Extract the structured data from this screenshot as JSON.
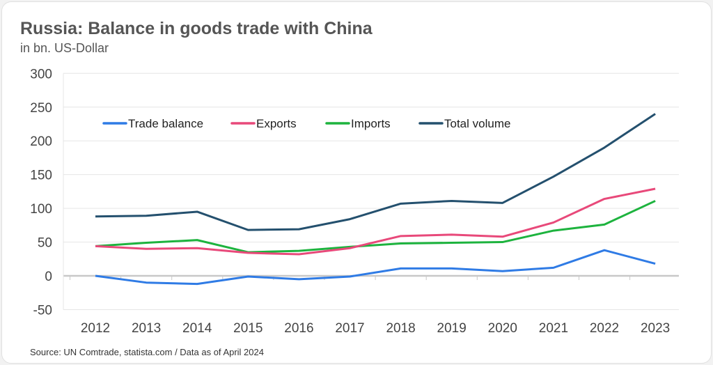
{
  "chart_data": {
    "type": "line",
    "title": "Russia: Balance in goods trade with China",
    "subtitle": "in bn. US-Dollar",
    "xlabel": "",
    "ylabel": "",
    "x": [
      "2012",
      "2013",
      "2014",
      "2015",
      "2016",
      "2017",
      "2018",
      "2019",
      "2020",
      "2021",
      "2022",
      "2023"
    ],
    "ylim": [
      -50,
      300
    ],
    "yticks": [
      300,
      250,
      200,
      150,
      100,
      50,
      0,
      -50
    ],
    "grid": true,
    "legend_position": "top-left",
    "series": [
      {
        "name": "Trade balance",
        "color": "#2f7be5",
        "values": [
          0,
          -10,
          -12,
          -1,
          -5,
          -1,
          11,
          11,
          7,
          12,
          38,
          18
        ]
      },
      {
        "name": "Exports",
        "color": "#e8497a",
        "values": [
          44,
          40,
          41,
          34,
          32,
          41,
          59,
          61,
          58,
          79,
          114,
          129
        ]
      },
      {
        "name": "Imports",
        "color": "#1db33e",
        "values": [
          44,
          49,
          53,
          35,
          37,
          43,
          48,
          49,
          50,
          67,
          76,
          111
        ]
      },
      {
        "name": "Total volume",
        "color": "#24506e",
        "values": [
          88,
          89,
          95,
          68,
          69,
          84,
          107,
          111,
          108,
          147,
          190,
          240
        ]
      }
    ],
    "source": "Source: UN Comtrade, statista.com /  Data as of April 2024"
  }
}
